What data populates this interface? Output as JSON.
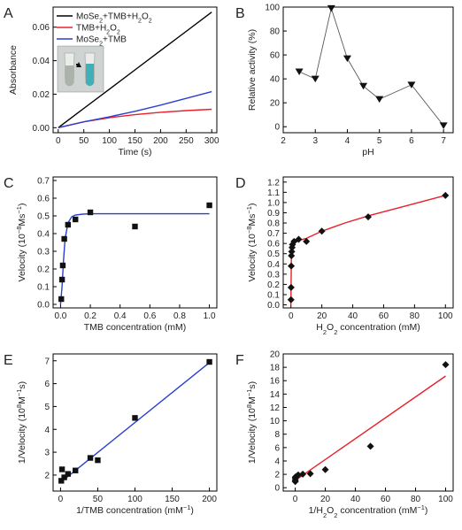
{
  "chart_data": [
    {
      "panel": "A",
      "type": "line",
      "xlabel": "Time (s)",
      "ylabel": "Absorbance",
      "xlim": [
        -10,
        310
      ],
      "ylim": [
        -0.003,
        0.072
      ],
      "xticks": [
        0,
        50,
        100,
        150,
        200,
        250,
        300
      ],
      "yticks": [
        0.0,
        0.02,
        0.04,
        0.06
      ],
      "ytick_labels": [
        "0.00",
        "0.02",
        "0.04",
        "0.06"
      ],
      "legend_position": "top-left",
      "series": [
        {
          "name_parts": [
            "MoSe",
            "2",
            "+TMB+H",
            "2",
            "O",
            "2"
          ],
          "color": "#000000",
          "x": [
            0,
            50,
            100,
            150,
            200,
            250,
            300
          ],
          "y": [
            0.0,
            0.0115,
            0.023,
            0.0345,
            0.046,
            0.0575,
            0.069
          ]
        },
        {
          "name_parts": [
            "TMB+H",
            "2",
            "O",
            "2"
          ],
          "color": "#e8202a",
          "x": [
            0,
            50,
            100,
            150,
            200,
            250,
            300
          ],
          "y": [
            0.0,
            0.0035,
            0.006,
            0.0078,
            0.0092,
            0.0102,
            0.011
          ]
        },
        {
          "name_parts": [
            "MoSe",
            "2",
            "+TMB"
          ],
          "color": "#2a3fd0",
          "x": [
            0,
            50,
            100,
            150,
            200,
            250,
            300
          ],
          "y": [
            0.0,
            0.0035,
            0.0065,
            0.0098,
            0.0135,
            0.0175,
            0.0215
          ]
        }
      ]
    },
    {
      "panel": "B",
      "type": "line",
      "xlabel": "pH",
      "ylabel": "Relative activity (%)",
      "xlim": [
        2,
        7.3
      ],
      "ylim": [
        -5,
        100
      ],
      "xticks": [
        2,
        3,
        4,
        5,
        6,
        7
      ],
      "yticks": [
        0,
        20,
        40,
        60,
        80,
        100
      ],
      "marker": "triangle-down",
      "x": [
        2.5,
        3.0,
        3.5,
        4.0,
        4.5,
        5.0,
        6.0,
        7.0
      ],
      "y": [
        46,
        40,
        99,
        57,
        34,
        23,
        35,
        1
      ]
    },
    {
      "panel": "C",
      "type": "scatter",
      "xlabel": "TMB concentration (mM)",
      "ylabel_parts": [
        "Velocity (10",
        "−8",
        "Ms",
        "−1",
        ")"
      ],
      "xlim": [
        -0.05,
        1.05
      ],
      "ylim": [
        -0.02,
        0.72
      ],
      "xticks": [
        0.0,
        0.2,
        0.4,
        0.6,
        0.8,
        1.0
      ],
      "xtick_labels": [
        "0.0",
        "0.2",
        "0.4",
        "0.6",
        "0.8",
        "1.0"
      ],
      "yticks": [
        0.0,
        0.1,
        0.2,
        0.3,
        0.4,
        0.5,
        0.6,
        0.7
      ],
      "ytick_labels": [
        "0.0",
        "0.1",
        "0.2",
        "0.3",
        "0.4",
        "0.5",
        "0.6",
        "0.7"
      ],
      "marker": "square",
      "fit_color": "#2a3fd0",
      "x": [
        0.005,
        0.01,
        0.015,
        0.025,
        0.05,
        0.1,
        0.2,
        0.5,
        1.0
      ],
      "y": [
        0.03,
        0.14,
        0.22,
        0.37,
        0.45,
        0.48,
        0.52,
        0.44,
        0.56
      ],
      "fit_x": [
        0.0,
        0.01,
        0.02,
        0.03,
        0.05,
        0.075,
        0.1,
        0.15,
        0.2,
        0.3,
        0.5,
        1.0
      ],
      "fit_y": [
        0.0,
        0.1,
        0.25,
        0.37,
        0.46,
        0.495,
        0.505,
        0.51,
        0.512,
        0.512,
        0.512,
        0.512
      ]
    },
    {
      "panel": "D",
      "type": "scatter",
      "xlabel_parts": [
        "H",
        "2",
        "O",
        "2",
        " concentration (mM)"
      ],
      "ylabel_parts": [
        "Velocity (10",
        "−8",
        "Ms",
        "−1",
        ")"
      ],
      "xlim": [
        -5,
        105
      ],
      "ylim": [
        -0.03,
        1.25
      ],
      "xticks": [
        0,
        20,
        40,
        60,
        80,
        100
      ],
      "yticks": [
        0.0,
        0.1,
        0.2,
        0.3,
        0.4,
        0.5,
        0.6,
        0.7,
        0.8,
        0.9,
        1.0,
        1.1,
        1.2
      ],
      "ytick_labels": [
        "0.0",
        "0.1",
        "0.2",
        "0.3",
        "0.4",
        "0.5",
        "0.6",
        "0.7",
        "0.8",
        "0.9",
        "1.0",
        "1.1",
        "1.2"
      ],
      "marker": "diamond",
      "fit_color": "#e8202a",
      "x": [
        0.05,
        0.1,
        0.2,
        0.3,
        0.5,
        0.75,
        1.0,
        2.0,
        5.0,
        10,
        20,
        50,
        100
      ],
      "y": [
        0.05,
        0.17,
        0.38,
        0.48,
        0.52,
        0.56,
        0.59,
        0.62,
        0.64,
        0.62,
        0.72,
        0.86,
        1.07
      ],
      "fit_x": [
        0.0,
        0.1,
        0.2,
        0.35,
        0.5,
        1.0,
        2.0,
        5.0,
        10,
        20,
        35,
        50,
        75,
        100
      ],
      "fit_y": [
        0.0,
        0.2,
        0.38,
        0.5,
        0.55,
        0.58,
        0.6,
        0.63,
        0.65,
        0.72,
        0.8,
        0.87,
        0.97,
        1.07
      ]
    },
    {
      "panel": "E",
      "type": "scatter",
      "xlabel_parts": [
        "1/TMB concentration (mM",
        "−1",
        ")"
      ],
      "ylabel_parts": [
        "1/Velocity (10",
        "8",
        "M",
        "−1",
        "s)"
      ],
      "xlim": [
        -10,
        210
      ],
      "ylim": [
        1.3,
        7.3
      ],
      "xticks": [
        0,
        50,
        100,
        150,
        200
      ],
      "yticks": [
        2,
        3,
        4,
        5,
        6,
        7
      ],
      "marker": "square",
      "fit_color": "#2a3fd0",
      "x": [
        1,
        2,
        5,
        10,
        20,
        40,
        50,
        100,
        200
      ],
      "y": [
        1.75,
        2.25,
        1.9,
        2.05,
        2.2,
        2.75,
        2.65,
        4.5,
        6.95
      ],
      "fit_x": [
        0,
        200
      ],
      "fit_y": [
        1.68,
        6.92
      ]
    },
    {
      "panel": "F",
      "type": "scatter",
      "xlabel_parts": [
        "1/H",
        "2",
        "O",
        "2",
        " concentration (mM",
        "−1",
        ")"
      ],
      "ylabel_parts": [
        "1/Velocity (10",
        "8",
        "M",
        "−1",
        "s)"
      ],
      "xlim": [
        -8,
        105
      ],
      "ylim": [
        -0.5,
        20
      ],
      "xticks": [
        0,
        20,
        40,
        60,
        80,
        100
      ],
      "yticks": [
        0,
        2,
        4,
        6,
        8,
        10,
        12,
        14,
        16,
        18,
        20
      ],
      "marker": "diamond",
      "fit_color": "#e8202a",
      "x": [
        0.01,
        0.02,
        0.05,
        0.1,
        0.2,
        0.5,
        1,
        1.33,
        2,
        5,
        10,
        20,
        50,
        100
      ],
      "y": [
        0.93,
        1.1,
        1.39,
        1.56,
        1.61,
        1.59,
        1.69,
        1.78,
        1.92,
        2.03,
        2.1,
        2.7,
        6.2,
        18.4
      ],
      "fit_x": [
        0,
        100
      ],
      "fit_y": [
        1.1,
        16.7
      ]
    }
  ]
}
